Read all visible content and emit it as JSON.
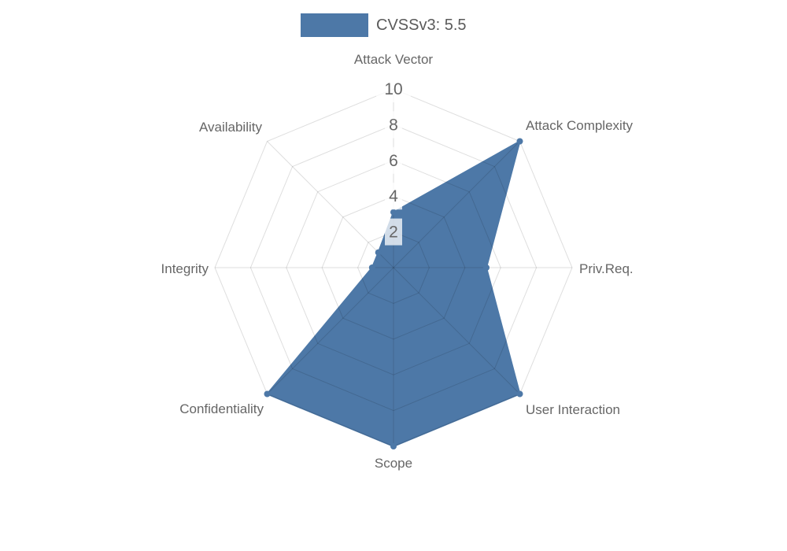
{
  "legend": {
    "label": "CVSSv3: 5.5",
    "swatch_color": "#4d78a7"
  },
  "chart_data": {
    "type": "radar",
    "title": "",
    "categories": [
      "Attack Vector",
      "Attack Complexity",
      "Priv.Req.",
      "User Interaction",
      "Scope",
      "Confidentiality",
      "Integrity",
      "Availability"
    ],
    "series": [
      {
        "name": "CVSSv3: 5.5",
        "values": [
          3.1,
          10,
          5.2,
          10,
          10,
          10,
          1.2,
          1.2
        ]
      }
    ],
    "rmin": 0,
    "rmax": 10,
    "tick_labels": [
      "2",
      "4",
      "6",
      "8",
      "10"
    ],
    "tick_values": [
      2,
      4,
      6,
      8,
      10
    ],
    "ring_values": [
      2,
      4,
      6,
      8,
      10
    ],
    "legend_position": "top",
    "grid": "on",
    "colors": {
      "fill": "#4d78a7",
      "point": "#4d78a7",
      "grid_line": "rgba(0,0,0,0.13)",
      "axis_label": "#666666",
      "tick_text": "#666666",
      "tick_backdrop": "rgba(255,255,255,0.75)",
      "legend_text": "#5a5a5a"
    }
  }
}
